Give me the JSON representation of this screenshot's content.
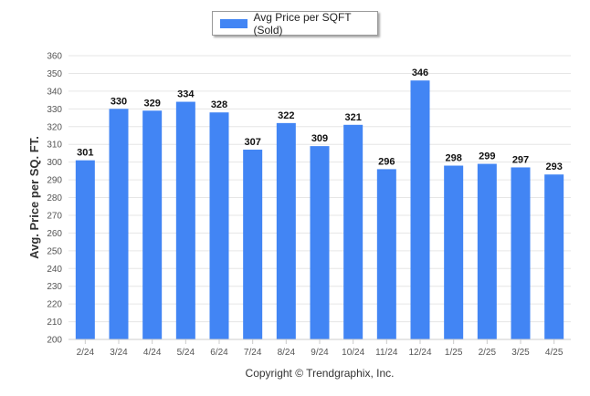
{
  "legend": {
    "label": "Avg Price per SQFT (Sold)"
  },
  "footer": {
    "copyright": "Copyright © Trendgraphix, Inc."
  },
  "colors": {
    "bar": "#4285f4",
    "grid": "#e6e6e6",
    "axis": "#cccccc"
  },
  "chart_data": {
    "type": "bar",
    "categories": [
      "2/24",
      "3/24",
      "4/24",
      "5/24",
      "6/24",
      "7/24",
      "8/24",
      "9/24",
      "10/24",
      "11/24",
      "12/24",
      "1/25",
      "2/25",
      "3/25",
      "4/25"
    ],
    "series": [
      {
        "name": "Avg Price per SQFT (Sold)",
        "values": [
          301,
          330,
          329,
          334,
          328,
          307,
          322,
          309,
          321,
          296,
          346,
          298,
          299,
          297,
          293
        ]
      }
    ],
    "ylabel": "Avg. Price per SQ. FT.",
    "xlabel": "",
    "ylim": [
      200,
      360
    ],
    "yticks": [
      200,
      210,
      220,
      230,
      240,
      250,
      260,
      270,
      280,
      290,
      300,
      310,
      320,
      330,
      340,
      350,
      360
    ],
    "grid": true,
    "legend_position": "top-center",
    "data_labels": true
  }
}
